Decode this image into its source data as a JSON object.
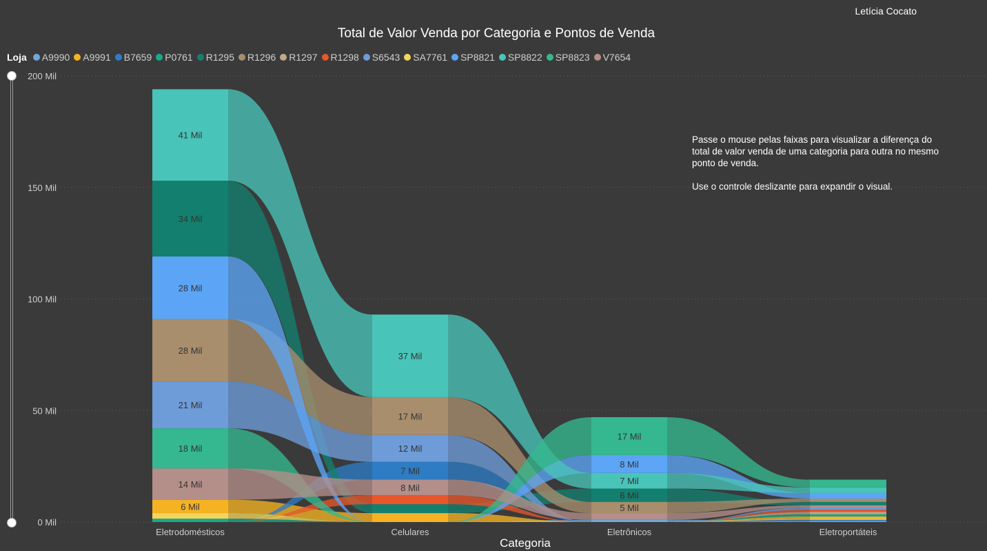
{
  "header": {
    "user_name": "Letícia Cocato"
  },
  "chart_data": {
    "type": "ribbon",
    "title": "Total de Valor Venda por Categoria e Pontos de Venda",
    "xlabel": "Categoria",
    "ylabel": "",
    "ylim": [
      0,
      200000
    ],
    "yticks": [
      {
        "value": 0,
        "label": "0 Mil"
      },
      {
        "value": 50000,
        "label": "50 Mil"
      },
      {
        "value": 100000,
        "label": "100 Mil"
      },
      {
        "value": 150000,
        "label": "150 Mil"
      },
      {
        "value": 200000,
        "label": "200 Mil"
      }
    ],
    "grid": true,
    "legend_title": "Loja",
    "legend_position": "top-left",
    "categories": [
      "Eletrodomésticos",
      "Celulares",
      "Eletrônicos",
      "Eletroportáteis"
    ],
    "series": [
      {
        "name": "A9990",
        "color": "#6FA8DC",
        "values": [
          0,
          0,
          1000,
          500
        ]
      },
      {
        "name": "A9991",
        "color": "#F5B324",
        "values": [
          6000,
          4000,
          0,
          1000
        ]
      },
      {
        "name": "B7659",
        "color": "#2E7CC4",
        "values": [
          0,
          8000,
          0,
          500
        ]
      },
      {
        "name": "P0761",
        "color": "#19A98A",
        "values": [
          1500,
          0,
          0,
          1000
        ]
      },
      {
        "name": "R1295",
        "color": "#13806F",
        "values": [
          34000,
          4000,
          6000,
          1500
        ]
      },
      {
        "name": "R1296",
        "color": "#A88E6D",
        "values": [
          28000,
          17000,
          5000,
          1500
        ]
      },
      {
        "name": "R1297",
        "color": "#BFA98A",
        "values": [
          0,
          0,
          0,
          1000
        ]
      },
      {
        "name": "R1298",
        "color": "#E8562A",
        "values": [
          0,
          4000,
          0,
          1000
        ]
      },
      {
        "name": "S6543",
        "color": "#6E9CD8",
        "values": [
          21000,
          12000,
          0,
          1000
        ]
      },
      {
        "name": "SA7761",
        "color": "#F3D55B",
        "values": [
          2500,
          0,
          0,
          500
        ]
      },
      {
        "name": "SP8821",
        "color": "#5CA5F6",
        "values": [
          28000,
          0,
          8000,
          2500
        ]
      },
      {
        "name": "SP8822",
        "color": "#49C4B9",
        "values": [
          41000,
          37000,
          7000,
          2500
        ]
      },
      {
        "name": "SP8823",
        "color": "#35B890",
        "values": [
          18000,
          0,
          17000,
          3500
        ]
      },
      {
        "name": "V7654",
        "color": "#B48E89",
        "values": [
          14000,
          7000,
          3000,
          1000
        ]
      }
    ],
    "data_labels": [
      [
        "6 Mil",
        "14 Mil",
        "18 Mil",
        "21 Mil",
        "28 Mil",
        "28 Mil",
        "34 Mil",
        "41 Mil"
      ],
      [
        "8 Mil",
        "7 Mil",
        "12 Mil",
        "17 Mil",
        "37 Mil"
      ],
      [
        "5 Mil",
        "6 Mil",
        "7 Mil",
        "8 Mil",
        "17 Mil"
      ],
      []
    ]
  },
  "annotation": {
    "line1": "Passe o mouse pelas faixas para visualizar a diferença do total de valor venda de uma categoria para outra no mesmo ponto de venda.",
    "line2": "Use o controle deslizante para expandir o visual."
  }
}
